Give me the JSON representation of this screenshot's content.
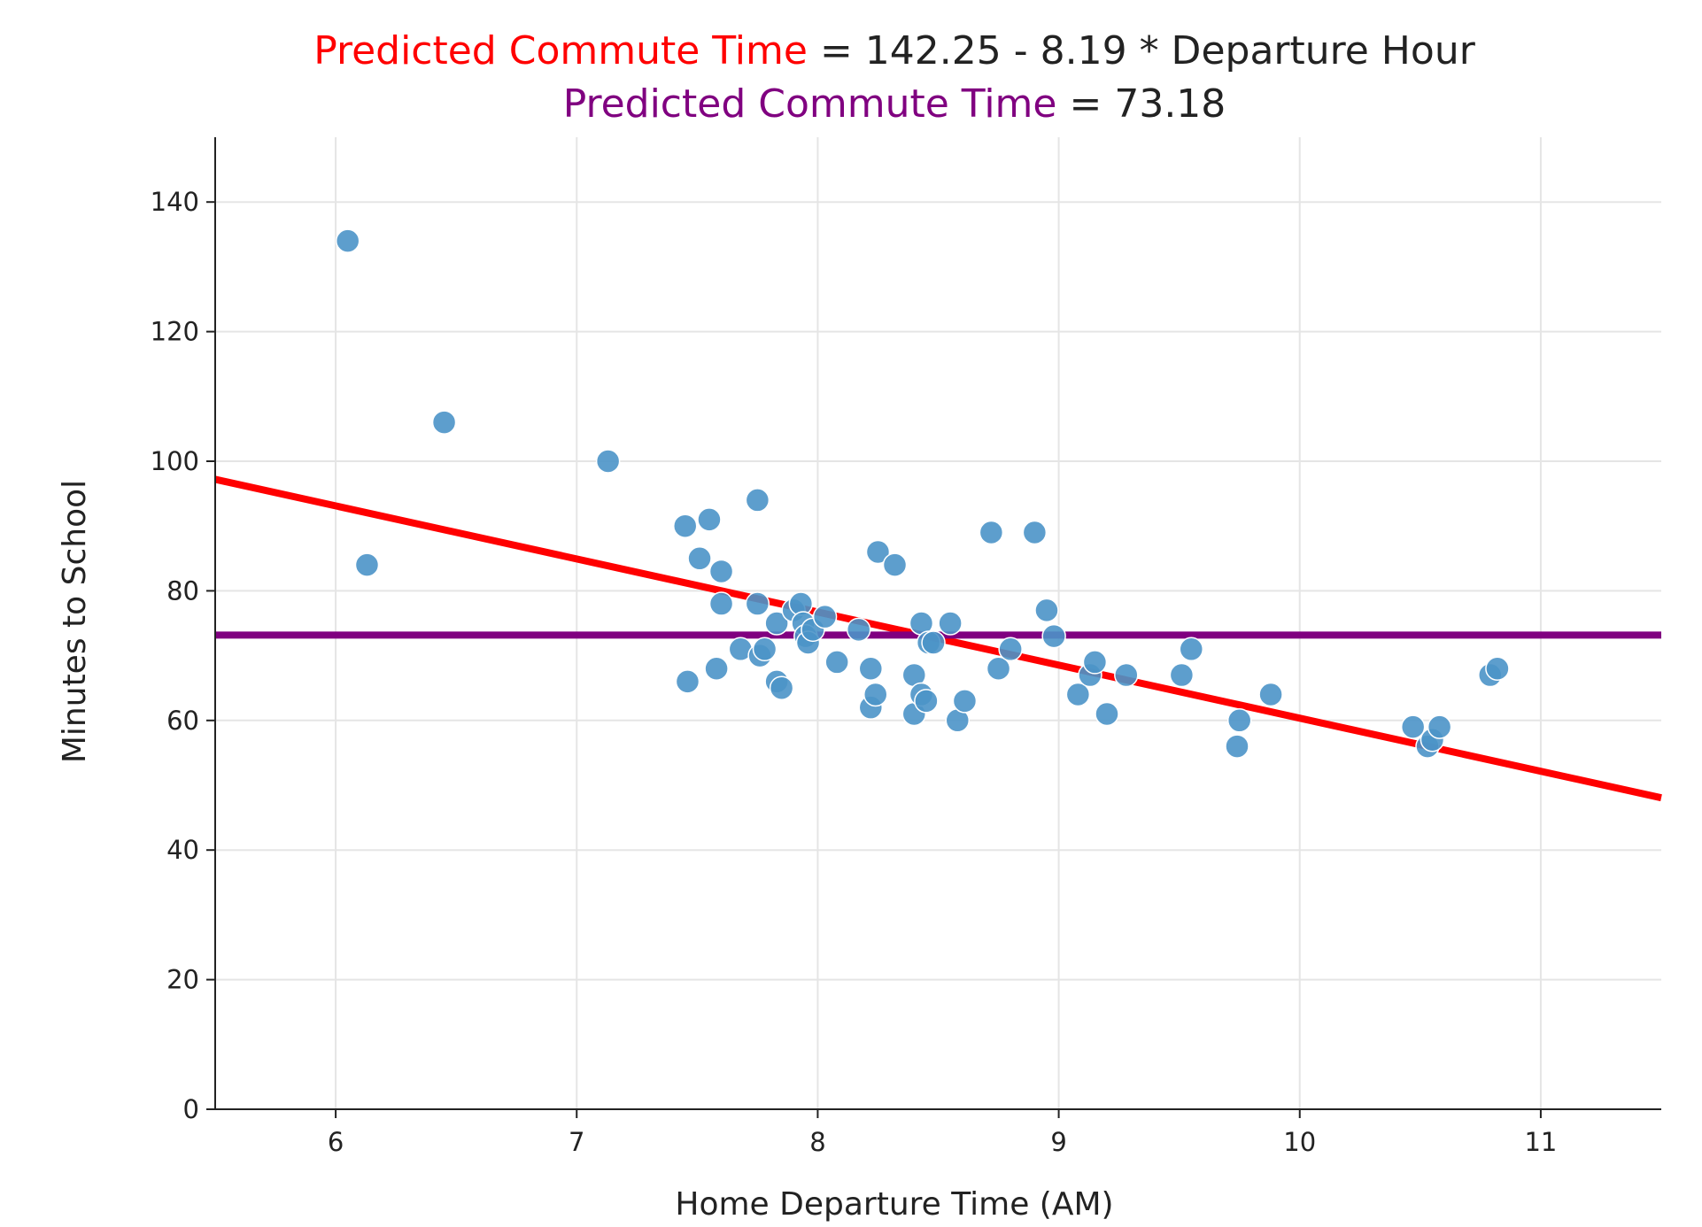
{
  "chart_data": {
    "type": "scatter",
    "title": {
      "line1": {
        "highlight": "Predicted Commute Time",
        "highlight_color": "#ff0000",
        "rest": " = 142.25 - 8.19 * Departure Hour"
      },
      "line2": {
        "highlight": "Predicted Commute Time",
        "highlight_color": "#800080",
        "rest": " = 73.18"
      }
    },
    "xlabel": "Home Departure Time (AM)",
    "ylabel": "Minutes to School",
    "xlim": [
      5.5,
      11.5
    ],
    "ylim": [
      0,
      150
    ],
    "x_ticks": [
      6,
      7,
      8,
      9,
      10,
      11
    ],
    "y_ticks": [
      0,
      20,
      40,
      60,
      80,
      100,
      120,
      140
    ],
    "grid": true,
    "point_color": "#4b93c8",
    "series": [
      {
        "type": "scatter",
        "points": [
          [
            6.05,
            134
          ],
          [
            6.13,
            84
          ],
          [
            6.45,
            106
          ],
          [
            7.13,
            100
          ],
          [
            7.45,
            90
          ],
          [
            7.46,
            66
          ],
          [
            7.51,
            85
          ],
          [
            7.55,
            91
          ],
          [
            7.58,
            68
          ],
          [
            7.6,
            83
          ],
          [
            7.6,
            78
          ],
          [
            7.68,
            71
          ],
          [
            7.75,
            94
          ],
          [
            7.75,
            78
          ],
          [
            7.76,
            70
          ],
          [
            7.78,
            71
          ],
          [
            7.83,
            66
          ],
          [
            7.83,
            75
          ],
          [
            7.85,
            65
          ],
          [
            7.9,
            77
          ],
          [
            7.93,
            78
          ],
          [
            7.94,
            75
          ],
          [
            7.95,
            73
          ],
          [
            7.96,
            72
          ],
          [
            7.98,
            74
          ],
          [
            8.03,
            76
          ],
          [
            8.08,
            69
          ],
          [
            8.17,
            74
          ],
          [
            8.22,
            68
          ],
          [
            8.22,
            62
          ],
          [
            8.24,
            64
          ],
          [
            8.25,
            86
          ],
          [
            8.32,
            84
          ],
          [
            8.4,
            67
          ],
          [
            8.4,
            61
          ],
          [
            8.43,
            75
          ],
          [
            8.43,
            64
          ],
          [
            8.45,
            63
          ],
          [
            8.46,
            72
          ],
          [
            8.48,
            72
          ],
          [
            8.55,
            75
          ],
          [
            8.58,
            60
          ],
          [
            8.61,
            63
          ],
          [
            8.72,
            89
          ],
          [
            8.75,
            68
          ],
          [
            8.8,
            71
          ],
          [
            8.9,
            89
          ],
          [
            8.95,
            77
          ],
          [
            8.98,
            73
          ],
          [
            9.08,
            64
          ],
          [
            9.13,
            67
          ],
          [
            9.15,
            69
          ],
          [
            9.2,
            61
          ],
          [
            9.28,
            67
          ],
          [
            9.51,
            67
          ],
          [
            9.55,
            71
          ],
          [
            9.74,
            56
          ],
          [
            9.75,
            60
          ],
          [
            9.88,
            64
          ],
          [
            10.47,
            59
          ],
          [
            10.53,
            56
          ],
          [
            10.55,
            57
          ],
          [
            10.58,
            59
          ],
          [
            10.79,
            67
          ],
          [
            10.82,
            68
          ]
        ]
      },
      {
        "type": "line",
        "name": "Predicted Commute Time",
        "color": "#ff0000",
        "intercept": 142.25,
        "slope": -8.19
      },
      {
        "type": "line",
        "name": "Predicted Commute Time",
        "color": "#800080",
        "constant": 73.18
      }
    ]
  }
}
